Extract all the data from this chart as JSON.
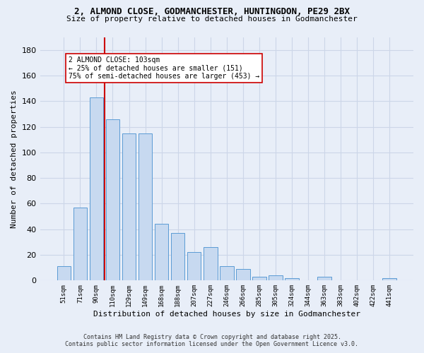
{
  "title_line1": "2, ALMOND CLOSE, GODMANCHESTER, HUNTINGDON, PE29 2BX",
  "title_line2": "Size of property relative to detached houses in Godmanchester",
  "xlabel": "Distribution of detached houses by size in Godmanchester",
  "ylabel": "Number of detached properties",
  "categories": [
    "51sqm",
    "71sqm",
    "90sqm",
    "110sqm",
    "129sqm",
    "149sqm",
    "168sqm",
    "188sqm",
    "207sqm",
    "227sqm",
    "246sqm",
    "266sqm",
    "285sqm",
    "305sqm",
    "324sqm",
    "344sqm",
    "363sqm",
    "383sqm",
    "402sqm",
    "422sqm",
    "441sqm"
  ],
  "values": [
    11,
    57,
    143,
    126,
    115,
    115,
    44,
    37,
    22,
    26,
    11,
    9,
    3,
    4,
    2,
    0,
    3,
    0,
    0,
    0,
    2
  ],
  "bar_color": "#c7d9f0",
  "bar_edge_color": "#5b9bd5",
  "vline_x": 2.5,
  "vline_color": "#cc0000",
  "annotation_text": "2 ALMOND CLOSE: 103sqm\n← 25% of detached houses are smaller (151)\n75% of semi-detached houses are larger (453) →",
  "annotation_box_color": "#ffffff",
  "annotation_box_edge": "#cc0000",
  "ylim": [
    0,
    190
  ],
  "yticks": [
    0,
    20,
    40,
    60,
    80,
    100,
    120,
    140,
    160,
    180
  ],
  "grid_color": "#ccd6e8",
  "background_color": "#e8eef8",
  "footer_line1": "Contains HM Land Registry data © Crown copyright and database right 2025.",
  "footer_line2": "Contains public sector information licensed under the Open Government Licence v3.0."
}
